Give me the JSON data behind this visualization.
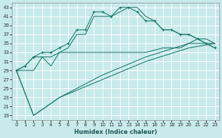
{
  "xlabel": "Humidex (Indice chaleur)",
  "bg_color": "#c8eaea",
  "grid_color": "#ffffff",
  "line_color": "#1a7a6a",
  "xlim": [
    -0.5,
    23.5
  ],
  "ylim": [
    18,
    44
  ],
  "yticks": [
    19,
    21,
    23,
    25,
    27,
    29,
    31,
    33,
    35,
    37,
    39,
    41,
    43
  ],
  "xticks": [
    0,
    1,
    2,
    3,
    4,
    5,
    6,
    7,
    8,
    9,
    10,
    11,
    12,
    13,
    14,
    15,
    16,
    17,
    18,
    19,
    20,
    21,
    22,
    23
  ],
  "line1_x": [
    0,
    1,
    2,
    3,
    4,
    5,
    6,
    7,
    8,
    9,
    10,
    11,
    12,
    13,
    14,
    15,
    16,
    17,
    18,
    19,
    20,
    21,
    22,
    23
  ],
  "line1_y": [
    29,
    30,
    32,
    33,
    33,
    34,
    35,
    38,
    38,
    42,
    42,
    41,
    43,
    43,
    42,
    40,
    40,
    38,
    38,
    37,
    37,
    36,
    35,
    34
  ],
  "line2_x": [
    0,
    1,
    2,
    3,
    4,
    5,
    6,
    7,
    8,
    9,
    10,
    11,
    12,
    13,
    14,
    15,
    16,
    17,
    18,
    19,
    20,
    21,
    22,
    23
  ],
  "line2_y": [
    29,
    30,
    32,
    32,
    30,
    33,
    34,
    37,
    37,
    41,
    41,
    41,
    42,
    43,
    43,
    41,
    40,
    38,
    38,
    37,
    37,
    36,
    35,
    34
  ],
  "line3_x": [
    0,
    2,
    3,
    4,
    5,
    10,
    15,
    17,
    18,
    19,
    20,
    21,
    22,
    23
  ],
  "line3_y": [
    29,
    29,
    32,
    32,
    33,
    33,
    33,
    34,
    34,
    34,
    35,
    36,
    36,
    35
  ],
  "line4_x": [
    0,
    2,
    5,
    10,
    15,
    20,
    23
  ],
  "line4_y": [
    29,
    19,
    23,
    27,
    31,
    34,
    35
  ],
  "line5_x": [
    0,
    2,
    5,
    10,
    15,
    20,
    23
  ],
  "line5_y": [
    29,
    19,
    23,
    28,
    32,
    35,
    35
  ]
}
